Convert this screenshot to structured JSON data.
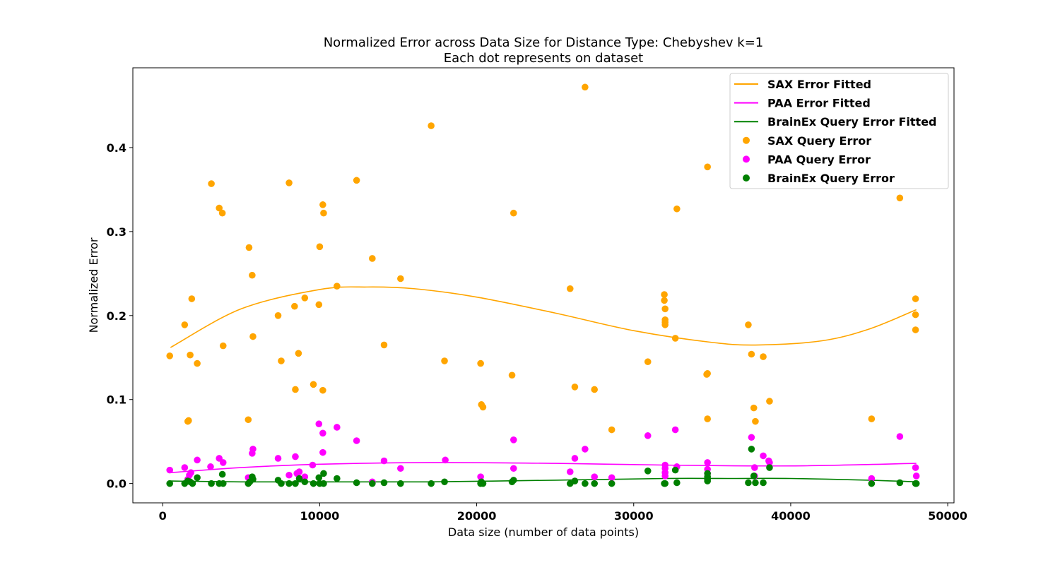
{
  "chart_data": {
    "type": "scatter",
    "title": "Normalized Error across Data Size for Distance Type: Chebyshev k=1",
    "subtitle": "Each dot represents on dataset",
    "xlabel": "Data size (number of data points)",
    "ylabel": "Normalized Error",
    "xlim": [
      -1900,
      50400
    ],
    "ylim": [
      -0.023,
      0.495
    ],
    "xticks": [
      0,
      10000,
      20000,
      30000,
      40000,
      50000
    ],
    "xtick_labels": [
      "0",
      "10000",
      "20000",
      "30000",
      "40000",
      "50000"
    ],
    "yticks": [
      0.0,
      0.1,
      0.2,
      0.3,
      0.4
    ],
    "ytick_labels": [
      "0.0",
      "0.1",
      "0.2",
      "0.3",
      "0.4"
    ],
    "grid": false,
    "legend_position": "top-right",
    "legend": [
      {
        "label": "SAX Error Fitted",
        "kind": "line",
        "color": "#FFA500"
      },
      {
        "label": "PAA Error Fitted",
        "kind": "line",
        "color": "#FF00FF"
      },
      {
        "label": "BrainEx Query Error Fitted",
        "kind": "line",
        "color": "#008000"
      },
      {
        "label": "SAX Query Error",
        "kind": "point",
        "color": "#FFA500"
      },
      {
        "label": "PAA Query Error",
        "kind": "point",
        "color": "#FF00FF"
      },
      {
        "label": "BrainEx Query Error",
        "kind": "point",
        "color": "#008000"
      }
    ],
    "fitted": [
      {
        "name": "SAX Error Fitted",
        "color": "#FFA500",
        "x": [
          500,
          5000,
          10000,
          13000,
          16000,
          20000,
          25000,
          30000,
          35000,
          38000,
          42000,
          45000,
          48000
        ],
        "y": [
          0.162,
          0.208,
          0.231,
          0.234,
          0.232,
          0.222,
          0.203,
          0.182,
          0.168,
          0.165,
          0.17,
          0.184,
          0.207
        ]
      },
      {
        "name": "PAA Error Fitted",
        "color": "#FF00FF",
        "x": [
          500,
          5000,
          10000,
          17000,
          25000,
          32000,
          40000,
          48000
        ],
        "y": [
          0.013,
          0.019,
          0.023,
          0.025,
          0.024,
          0.022,
          0.021,
          0.024
        ]
      },
      {
        "name": "BrainEx Query Error Fitted",
        "color": "#008000",
        "x": [
          500,
          5000,
          10000,
          17000,
          25000,
          32000,
          36000,
          40000,
          45000,
          48000
        ],
        "y": [
          0.003,
          0.002,
          0.002,
          0.002,
          0.004,
          0.006,
          0.006,
          0.006,
          0.004,
          0.002
        ]
      }
    ],
    "series": [
      {
        "name": "SAX Query Error",
        "color": "#FFA500",
        "points": [
          [
            450,
            0.152
          ],
          [
            1400,
            0.189
          ],
          [
            1600,
            0.074
          ],
          [
            1650,
            0.075
          ],
          [
            1750,
            0.153
          ],
          [
            1850,
            0.22
          ],
          [
            2200,
            0.143
          ],
          [
            3100,
            0.357
          ],
          [
            3600,
            0.328
          ],
          [
            3800,
            0.322
          ],
          [
            3850,
            0.164
          ],
          [
            5450,
            0.076
          ],
          [
            5500,
            0.281
          ],
          [
            5700,
            0.248
          ],
          [
            5750,
            0.175
          ],
          [
            7350,
            0.2
          ],
          [
            7550,
            0.146
          ],
          [
            8050,
            0.358
          ],
          [
            8400,
            0.211
          ],
          [
            8450,
            0.112
          ],
          [
            8650,
            0.155
          ],
          [
            9050,
            0.221
          ],
          [
            9600,
            0.118
          ],
          [
            9950,
            0.213
          ],
          [
            10000,
            0.282
          ],
          [
            10200,
            0.111
          ],
          [
            10200,
            0.332
          ],
          [
            10250,
            0.322
          ],
          [
            11100,
            0.235
          ],
          [
            12350,
            0.361
          ],
          [
            13350,
            0.268
          ],
          [
            14100,
            0.165
          ],
          [
            15150,
            0.244
          ],
          [
            17100,
            0.426
          ],
          [
            17950,
            0.146
          ],
          [
            20250,
            0.143
          ],
          [
            20300,
            0.094
          ],
          [
            20400,
            0.091
          ],
          [
            22250,
            0.129
          ],
          [
            22350,
            0.322
          ],
          [
            25950,
            0.232
          ],
          [
            26250,
            0.115
          ],
          [
            26900,
            0.472
          ],
          [
            27500,
            0.112
          ],
          [
            28600,
            0.064
          ],
          [
            30900,
            0.145
          ],
          [
            31950,
            0.225
          ],
          [
            31950,
            0.218
          ],
          [
            32000,
            0.208
          ],
          [
            32000,
            0.195
          ],
          [
            32000,
            0.192
          ],
          [
            32000,
            0.189
          ],
          [
            32650,
            0.173
          ],
          [
            32750,
            0.327
          ],
          [
            34650,
            0.13
          ],
          [
            34700,
            0.131
          ],
          [
            34700,
            0.377
          ],
          [
            34700,
            0.077
          ],
          [
            37300,
            0.189
          ],
          [
            37500,
            0.154
          ],
          [
            37650,
            0.09
          ],
          [
            37750,
            0.074
          ],
          [
            38250,
            0.151
          ],
          [
            38650,
            0.098
          ],
          [
            45150,
            0.077
          ],
          [
            46950,
            0.34
          ],
          [
            47950,
            0.22
          ],
          [
            47950,
            0.201
          ],
          [
            47950,
            0.183
          ]
        ]
      },
      {
        "name": "PAA Query Error",
        "color": "#FF00FF",
        "points": [
          [
            450,
            0.016
          ],
          [
            1400,
            0.019
          ],
          [
            1600,
            0.005
          ],
          [
            1700,
            0.01
          ],
          [
            1800,
            0.013
          ],
          [
            2200,
            0.028
          ],
          [
            3050,
            0.02
          ],
          [
            3600,
            0.03
          ],
          [
            3850,
            0.025
          ],
          [
            5450,
            0.007
          ],
          [
            5700,
            0.036
          ],
          [
            5750,
            0.041
          ],
          [
            7350,
            0.03
          ],
          [
            8050,
            0.01
          ],
          [
            8450,
            0.032
          ],
          [
            8550,
            0.012
          ],
          [
            8700,
            0.014
          ],
          [
            9050,
            0.008
          ],
          [
            9550,
            0.022
          ],
          [
            9950,
            0.071
          ],
          [
            10200,
            0.06
          ],
          [
            10200,
            0.037
          ],
          [
            11100,
            0.067
          ],
          [
            12350,
            0.051
          ],
          [
            13350,
            0.002
          ],
          [
            14100,
            0.027
          ],
          [
            15150,
            0.018
          ],
          [
            18000,
            0.028
          ],
          [
            20250,
            0.008
          ],
          [
            22350,
            0.018
          ],
          [
            22350,
            0.052
          ],
          [
            25950,
            0.014
          ],
          [
            26250,
            0.03
          ],
          [
            26900,
            0.041
          ],
          [
            27500,
            0.008
          ],
          [
            28600,
            0.007
          ],
          [
            30900,
            0.057
          ],
          [
            32000,
            0.022
          ],
          [
            32000,
            0.018
          ],
          [
            32000,
            0.013
          ],
          [
            32000,
            0.009
          ],
          [
            32650,
            0.064
          ],
          [
            32750,
            0.02
          ],
          [
            34700,
            0.025
          ],
          [
            34700,
            0.017
          ],
          [
            34700,
            0.012
          ],
          [
            37500,
            0.055
          ],
          [
            37700,
            0.019
          ],
          [
            37700,
            0.009
          ],
          [
            38250,
            0.033
          ],
          [
            38600,
            0.027
          ],
          [
            38650,
            0.025
          ],
          [
            45150,
            0.006
          ],
          [
            46950,
            0.056
          ],
          [
            47950,
            0.019
          ],
          [
            48000,
            0.009
          ]
        ]
      },
      {
        "name": "BrainEx Query Error",
        "color": "#008000",
        "points": [
          [
            450,
            0.0
          ],
          [
            1400,
            0.0
          ],
          [
            1600,
            0.003
          ],
          [
            1750,
            0.002
          ],
          [
            1900,
            0.0
          ],
          [
            2200,
            0.007
          ],
          [
            3100,
            0.0
          ],
          [
            3600,
            0.0
          ],
          [
            3800,
            0.011
          ],
          [
            3850,
            0.0
          ],
          [
            5450,
            0.0
          ],
          [
            5550,
            0.002
          ],
          [
            5700,
            0.008
          ],
          [
            5750,
            0.005
          ],
          [
            7350,
            0.004
          ],
          [
            7550,
            0.0
          ],
          [
            8050,
            0.0
          ],
          [
            8450,
            0.0
          ],
          [
            8700,
            0.006
          ],
          [
            9050,
            0.002
          ],
          [
            9600,
            0.0
          ],
          [
            9950,
            0.007
          ],
          [
            10000,
            0.0
          ],
          [
            10250,
            0.012
          ],
          [
            10250,
            0.0
          ],
          [
            11100,
            0.006
          ],
          [
            12350,
            0.001
          ],
          [
            13350,
            0.0
          ],
          [
            14100,
            0.001
          ],
          [
            15150,
            0.0
          ],
          [
            17100,
            0.0
          ],
          [
            17950,
            0.002
          ],
          [
            20250,
            0.0
          ],
          [
            20300,
            0.002
          ],
          [
            20400,
            0.0
          ],
          [
            22250,
            0.002
          ],
          [
            22350,
            0.004
          ],
          [
            25950,
            0.0
          ],
          [
            26250,
            0.003
          ],
          [
            26900,
            0.0
          ],
          [
            27500,
            0.0
          ],
          [
            28600,
            0.0
          ],
          [
            30900,
            0.015
          ],
          [
            31950,
            0.0
          ],
          [
            32000,
            0.0
          ],
          [
            32650,
            0.016
          ],
          [
            32750,
            0.001
          ],
          [
            34700,
            0.012
          ],
          [
            34700,
            0.008
          ],
          [
            34700,
            0.005
          ],
          [
            34700,
            0.003
          ],
          [
            37300,
            0.001
          ],
          [
            37500,
            0.041
          ],
          [
            37650,
            0.009
          ],
          [
            37750,
            0.001
          ],
          [
            38250,
            0.001
          ],
          [
            38650,
            0.019
          ],
          [
            45150,
            0.0
          ],
          [
            46950,
            0.001
          ],
          [
            47950,
            0.0
          ],
          [
            48000,
            0.0
          ]
        ]
      }
    ]
  }
}
